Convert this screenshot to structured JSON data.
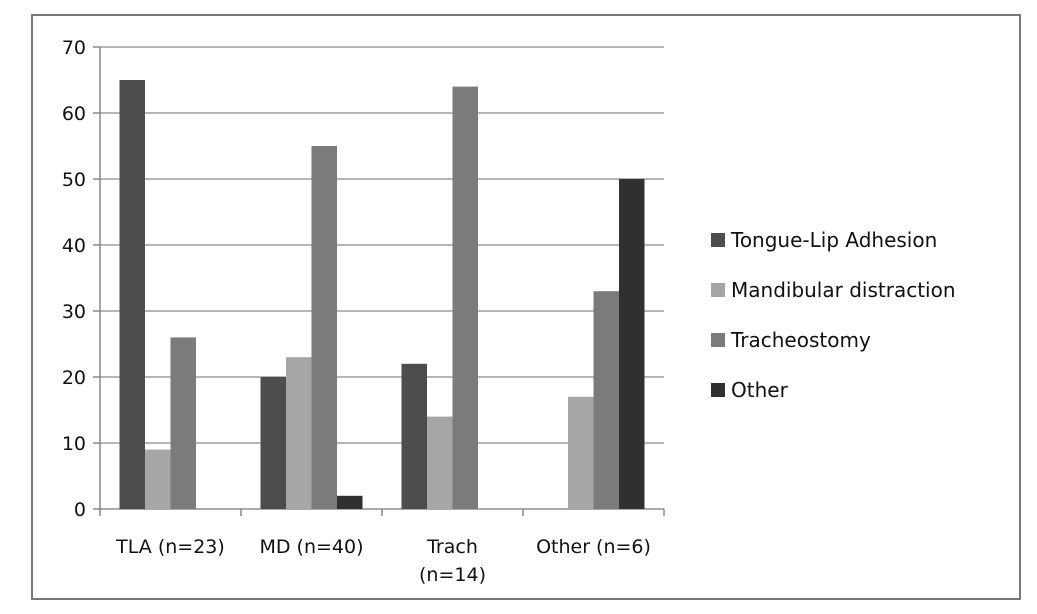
{
  "chart_data": {
    "type": "bar",
    "categories": [
      [
        "TLA (n=23)"
      ],
      [
        "MD (n=40)"
      ],
      [
        "Trach",
        "(n=14)"
      ],
      [
        "Other (n=6)"
      ]
    ],
    "series": [
      {
        "name": "Tongue-Lip Adhesion",
        "color": "#4d4d4d",
        "values": [
          65,
          20,
          22,
          0
        ]
      },
      {
        "name": "Mandibular distraction",
        "color": "#a6a6a6",
        "values": [
          9,
          23,
          14,
          17
        ]
      },
      {
        "name": "Tracheostomy",
        "color": "#7b7b7b",
        "values": [
          26,
          55,
          64,
          33
        ]
      },
      {
        "name": "Other",
        "color": "#303030",
        "values": [
          0,
          2,
          0,
          50
        ]
      }
    ],
    "ylim": [
      0,
      70
    ],
    "yticks": [
      0,
      10,
      20,
      30,
      40,
      50,
      60,
      70
    ],
    "grid": true,
    "legend_position": "right",
    "title": "",
    "xlabel": "",
    "ylabel": ""
  }
}
